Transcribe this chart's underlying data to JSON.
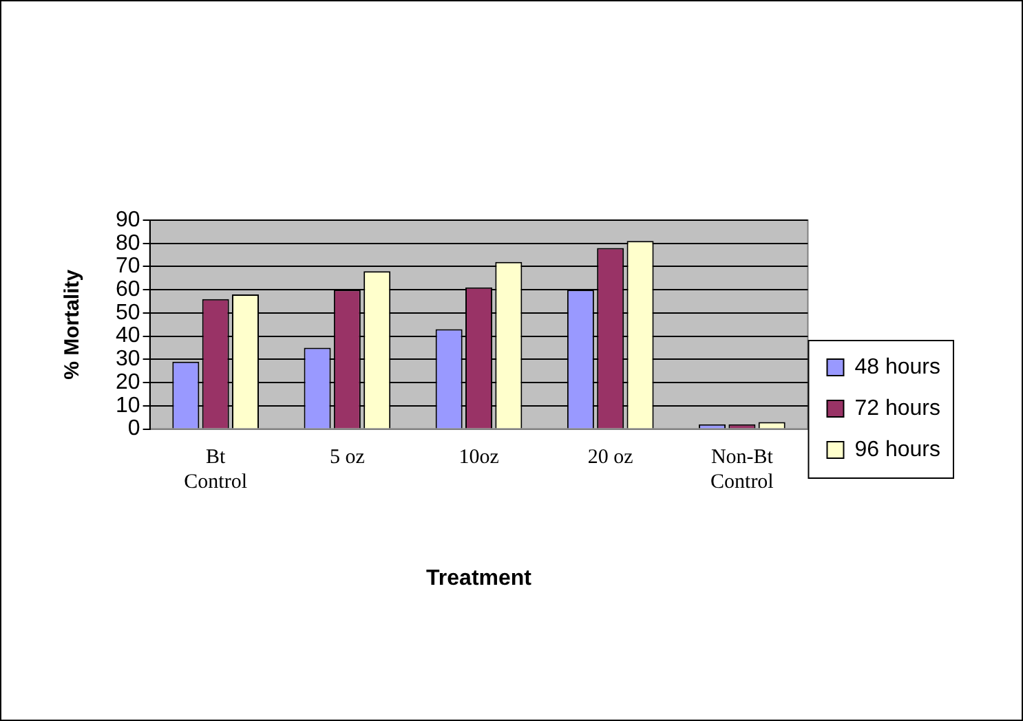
{
  "chart_data": {
    "type": "bar",
    "xlabel": "Treatment",
    "ylabel": "% Mortality",
    "categories": [
      "Bt\nControl",
      "5 oz",
      "10oz",
      "20 oz",
      "Non-Bt\nControl"
    ],
    "series": [
      {
        "name": "48 hours",
        "color": "#9999ff",
        "values": [
          29,
          35,
          43,
          60,
          2
        ]
      },
      {
        "name": "72 hours",
        "color": "#993366",
        "values": [
          56,
          60,
          61,
          78,
          2
        ]
      },
      {
        "name": "96 hours",
        "color": "#ffffcc",
        "values": [
          58,
          68,
          72,
          81,
          3
        ]
      }
    ],
    "ylim": [
      0,
      90
    ],
    "yticks": [
      0,
      10,
      20,
      30,
      40,
      50,
      60,
      70,
      80,
      90
    ],
    "grid": "y",
    "legend": "right"
  }
}
